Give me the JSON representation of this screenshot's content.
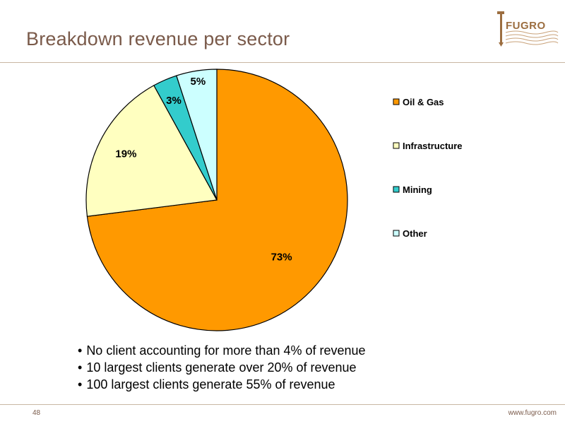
{
  "slide": {
    "title": "Breakdown revenue per sector",
    "logo_text": "FUGRO",
    "page_number": "48",
    "website": "www.fugro.com",
    "bullets": [
      "No client accounting for more than 4% of revenue",
      "10 largest clients generate over 20% of revenue",
      "100 largest clients generate 55% of revenue"
    ]
  },
  "chart_data": {
    "type": "pie",
    "title": "",
    "legend_position": "right",
    "slices": [
      {
        "label": "Oil & Gas",
        "value": 73,
        "data_label": "73%",
        "color": "#ff9900"
      },
      {
        "label": "Infrastructure",
        "value": 19,
        "data_label": "19%",
        "color": "#ffffc0"
      },
      {
        "label": "Mining",
        "value": 3,
        "data_label": "3%",
        "color": "#33cccc"
      },
      {
        "label": "Other",
        "value": 5,
        "data_label": "5%",
        "color": "#ccffff"
      }
    ]
  }
}
